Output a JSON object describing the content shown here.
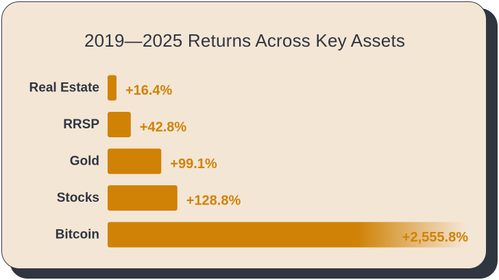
{
  "chart_data": {
    "type": "bar",
    "orientation": "horizontal",
    "title": "2019—2025 Returns Across Key Assets",
    "categories": [
      "Real Estate",
      "RRSP",
      "Gold",
      "Stocks",
      "Bitcoin"
    ],
    "values": [
      16.4,
      42.8,
      99.1,
      128.8,
      2555.8
    ],
    "value_labels": [
      "+16.4%",
      "+42.8%",
      "+99.1%",
      "+128.8%",
      "+2,555.8%"
    ],
    "unit": "%",
    "axis_break_on_last_bar": true,
    "grid": false,
    "legend": "none",
    "colors": {
      "bar": "#d08206",
      "value_text": "#d08206",
      "label_text": "#2f3640",
      "background": "#f4e6d5",
      "frame": "#2f3640"
    }
  }
}
